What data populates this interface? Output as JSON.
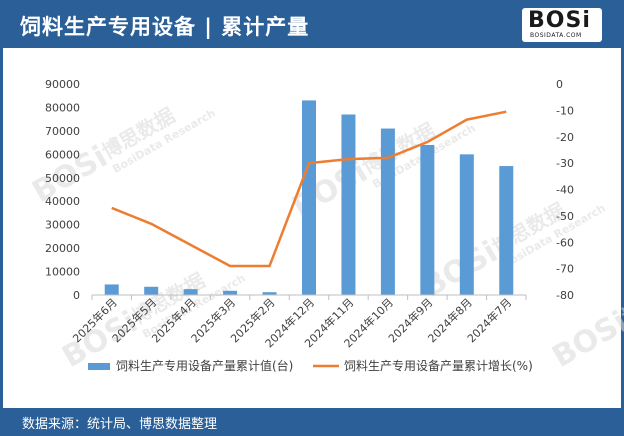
{
  "header": {
    "title": "饲料生产专用设备 | 累计产量",
    "logo_text": "BOSi",
    "logo_sub": "BOSIDATA.COM"
  },
  "footer": {
    "source": "数据来源：统计局、博思数据整理"
  },
  "watermark": {
    "brand": "BOSi",
    "cn": "博思数据",
    "en": "BosiData Research"
  },
  "colors": {
    "header_bg": "#2a5f98",
    "bar": "#5b9bd5",
    "line": "#ed7d31"
  },
  "chart_data": {
    "type": "bar+line",
    "categories": [
      "2025年6月",
      "2025年5月",
      "2025年4月",
      "2025年3月",
      "2025年2月",
      "2024年12月",
      "2024年11月",
      "2024年10月",
      "2024年9月",
      "2024年8月",
      "2024年7月"
    ],
    "series": [
      {
        "name": "饲料生产专用设备产量累计值(台)",
        "type": "bar",
        "axis": "left",
        "values": [
          4500,
          3500,
          2500,
          1800,
          1200,
          83000,
          77000,
          71000,
          64000,
          60000,
          55000
        ]
      },
      {
        "name": "饲料生产专用设备产量累计增长(%)",
        "type": "line",
        "axis": "right",
        "values": [
          -47,
          -53,
          -61,
          -69,
          -69,
          -30,
          -28.5,
          -28,
          -22,
          -13.5,
          -10.5
        ]
      }
    ],
    "ylim_left": [
      0,
      90000
    ],
    "yticks_left": [
      0,
      10000,
      20000,
      30000,
      40000,
      50000,
      60000,
      70000,
      80000,
      90000
    ],
    "ylim_right": [
      -80,
      0
    ],
    "yticks_right": [
      0,
      -10,
      -20,
      -30,
      -40,
      -50,
      -60,
      -70,
      -80
    ],
    "legend_position": "bottom",
    "grid": false
  }
}
